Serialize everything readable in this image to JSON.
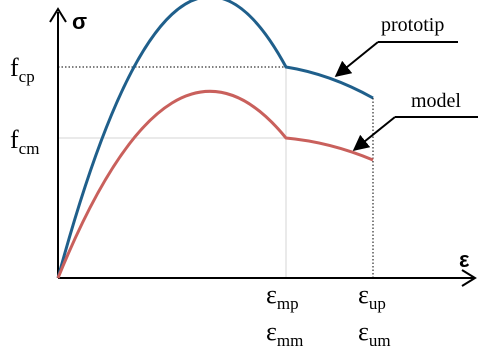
{
  "axes": {
    "y_symbol": "σ",
    "x_symbol": "ε"
  },
  "y_labels": {
    "fcp": {
      "main": "f",
      "sub": "cp"
    },
    "fcm": {
      "main": "f",
      "sub": "cm"
    }
  },
  "x_labels": {
    "emp": {
      "main": "ε",
      "sub": "mp"
    },
    "emm": {
      "main": "ε",
      "sub": "mm"
    },
    "eup": {
      "main": "ε",
      "sub": "up"
    },
    "eum": {
      "main": "ε",
      "sub": "um"
    }
  },
  "curves": {
    "prototype": {
      "label": "prototip",
      "color": "#1f5f8b"
    },
    "model": {
      "label": "model",
      "color": "#c9605c"
    }
  },
  "colors": {
    "axis": "#000000",
    "guide": "#cccccc",
    "dotted": "#000000"
  }
}
